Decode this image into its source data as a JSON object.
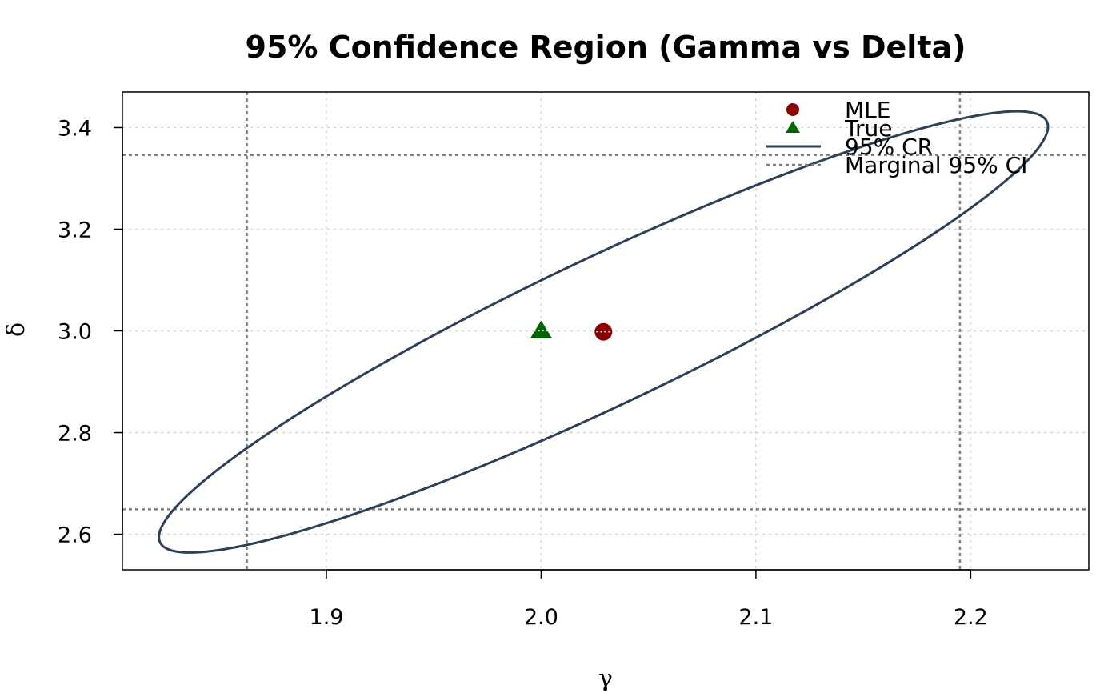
{
  "chart_data": {
    "type": "scatter",
    "title": "95% Confidence Region (Gamma vs Delta)",
    "xlabel": "γ",
    "ylabel": "δ",
    "xlim": [
      1.805,
      2.255
    ],
    "ylim": [
      2.53,
      3.47
    ],
    "xticks": [
      1.9,
      2.0,
      2.1,
      2.2
    ],
    "yticks": [
      2.6,
      2.8,
      3.0,
      3.2,
      3.4
    ],
    "xtick_labels": [
      "1.9",
      "2.0",
      "2.1",
      "2.2"
    ],
    "ytick_labels": [
      "2.6",
      "2.8",
      "3.0",
      "3.2",
      "3.4"
    ],
    "grid": true,
    "legend_position": "top-right",
    "points": [
      {
        "name": "MLE",
        "x": 2.029,
        "y": 2.998,
        "shape": "circle",
        "color": "#8B0000"
      },
      {
        "name": "True",
        "x": 2.0,
        "y": 3.0,
        "shape": "triangle",
        "color": "#006400"
      }
    ],
    "region": {
      "name": "95% CR",
      "color": "#2E4057",
      "center": [
        2.029,
        2.998
      ],
      "x_extent": [
        1.822,
        2.236
      ],
      "y_extent": [
        2.564,
        3.432
      ]
    },
    "marginal_ci": {
      "name": "Marginal 95% CI",
      "color": "#808080",
      "gamma": [
        1.863,
        2.195
      ],
      "delta": [
        2.649,
        3.346
      ]
    },
    "legend": [
      "MLE",
      "True",
      "95% CR",
      "Marginal 95% CI"
    ]
  }
}
